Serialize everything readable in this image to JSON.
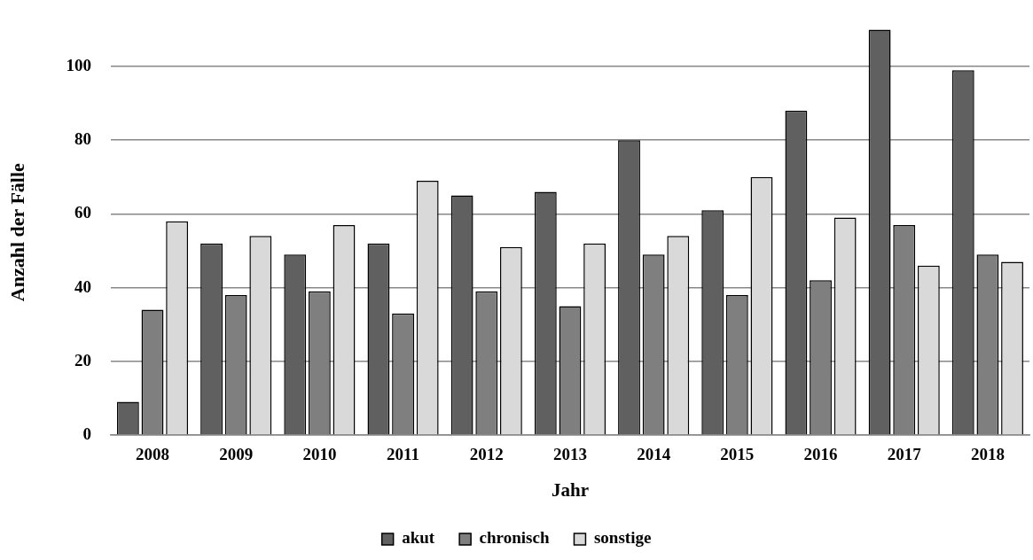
{
  "chart_data": {
    "type": "bar",
    "xlabel": "Jahr",
    "ylabel": "Anzahl der Fälle",
    "categories": [
      "2008",
      "2009",
      "2010",
      "2011",
      "2012",
      "2013",
      "2014",
      "2015",
      "2016",
      "2017",
      "2018"
    ],
    "series": [
      {
        "name": "akut",
        "color": "#606060",
        "values": [
          9,
          52,
          49,
          52,
          65,
          66,
          80,
          61,
          88,
          110,
          99
        ]
      },
      {
        "name": "chronisch",
        "color": "#7f7f7f",
        "values": [
          34,
          38,
          39,
          33,
          39,
          35,
          49,
          38,
          42,
          57,
          49
        ]
      },
      {
        "name": "sonstige",
        "color": "#d9d9d9",
        "values": [
          58,
          54,
          57,
          69,
          51,
          52,
          54,
          70,
          59,
          46,
          47
        ]
      }
    ],
    "ylim": [
      0,
      110
    ],
    "yticks": [
      0,
      20,
      40,
      60,
      80,
      100
    ],
    "grid": "y",
    "legend": "bottom"
  }
}
